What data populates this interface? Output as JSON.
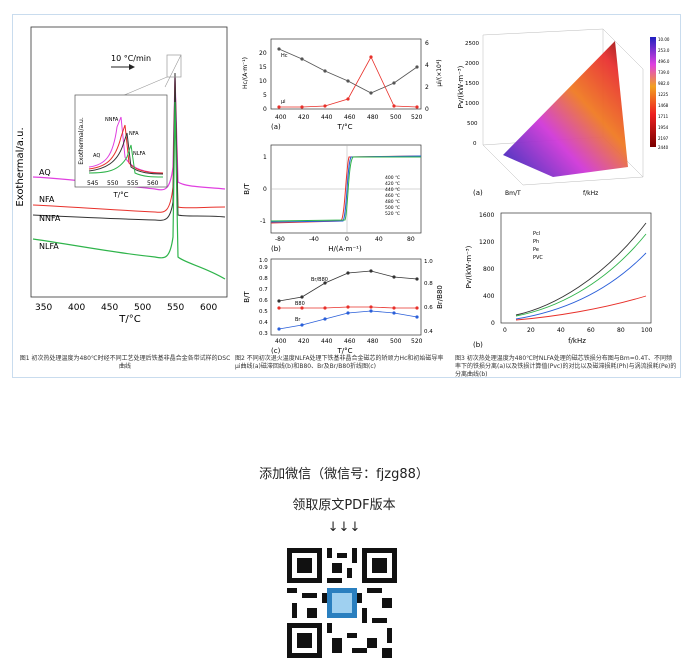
{
  "figure1": {
    "ylabel": "Exothermal/a.u.",
    "xlabel": "T/°C",
    "rate": "10 °C/min",
    "xticks": [
      "350",
      "400",
      "450",
      "500",
      "550",
      "600"
    ],
    "curve_labels": [
      "AQ",
      "NFA",
      "NNFA",
      "NLFA"
    ],
    "inset": {
      "ylabel": "Exothermal/a.u.",
      "xlabel": "T/°C",
      "xticks": [
        "545",
        "550",
        "555",
        "560"
      ],
      "labels": [
        "NNFA",
        "NFA",
        "AQ",
        "NLFA"
      ]
    },
    "caption": "图1 初次热处理温度为480℃时经不同工艺处理后铁基非晶合金各带试样的DSC曲线"
  },
  "figure2": {
    "a": {
      "panel": "(a)",
      "ylabel_left": "Hc/(A·m⁻¹)",
      "ylabel_right": "μi/(×10⁴)",
      "xlabel": "T/°C",
      "yticks_left": [
        "0",
        "5",
        "10",
        "15",
        "20"
      ],
      "yticks_right": [
        "0",
        "2",
        "4",
        "6"
      ],
      "xticks": [
        "400",
        "420",
        "440",
        "460",
        "480",
        "500",
        "520"
      ],
      "series": [
        "Hc",
        "μi"
      ]
    },
    "b": {
      "panel": "(b)",
      "ylabel": "B/T",
      "xlabel": "H/(A·m⁻¹)",
      "yticks": [
        "1",
        "0",
        "-1"
      ],
      "xticks": [
        "-80",
        "-40",
        "0",
        "40",
        "80"
      ],
      "legend": [
        "400 ℃",
        "420 ℃",
        "440 ℃",
        "460 ℃",
        "480 ℃",
        "500 ℃",
        "520 ℃"
      ]
    },
    "c": {
      "panel": "(c)",
      "ylabel_left": "B/T",
      "ylabel_right": "Br/B80",
      "xlabel": "T/°C",
      "yticks_left": [
        "0.3",
        "0.4",
        "0.5",
        "0.6",
        "0.7",
        "0.8",
        "0.9",
        "1.0"
      ],
      "yticks_right": [
        "0.4",
        "0.6",
        "0.8",
        "1.0"
      ],
      "xticks": [
        "400",
        "420",
        "440",
        "460",
        "480",
        "500",
        "520"
      ],
      "series": [
        "Br/B80",
        "B80",
        "Br"
      ]
    },
    "caption": "图2 不同初次退火温度NLFA处理下铁基非晶合金磁芯的矫顽力Hc和初始磁导率μi曲线(a)磁滞回线(b)和B80、Br及Br/B80折线图(c)"
  },
  "figure3": {
    "a": {
      "panel": "(a)",
      "zlabel": "Pv/(kW·m⁻³)",
      "zticks": [
        "0",
        "500",
        "1000",
        "1500",
        "2000",
        "2500"
      ],
      "xlabel": "f/kHz",
      "ylabel": "Bm/T",
      "colorbar": [
        "10.00",
        "253.0",
        "496.0",
        "739.0",
        "982.0",
        "1225",
        "1468",
        "1711",
        "1954",
        "2197",
        "2440"
      ]
    },
    "b": {
      "panel": "(b)",
      "ylabel": "Pv/(kW·m⁻³)",
      "xlabel": "f/kHz",
      "yticks": [
        "0",
        "400",
        "800",
        "1200",
        "1600"
      ],
      "xticks": [
        "0",
        "20",
        "40",
        "60",
        "80",
        "100"
      ],
      "legend": [
        "Pcl",
        "Ph",
        "Pe",
        "PVC"
      ]
    },
    "caption": "图3 初次热处理温度为480℃时NLFA处理的磁芯铁损分布图与Bm=0.4T、不同频率下的铁损分离(a)以及铁损计算值(Pvc)的对比以及磁滞损耗(Ph)与涡流损耗(Pe)的分离曲线(b)"
  },
  "cta": {
    "line1": "添加微信（微信号：fjzg88）",
    "line2": "领取原文PDF版本",
    "arrows": "↓↓↓"
  },
  "colors": {
    "panel_border": "#c9dcee",
    "red": "#e8302a",
    "green": "#2fb44b",
    "magenta": "#e040e0",
    "blue": "#2a5fd9"
  }
}
